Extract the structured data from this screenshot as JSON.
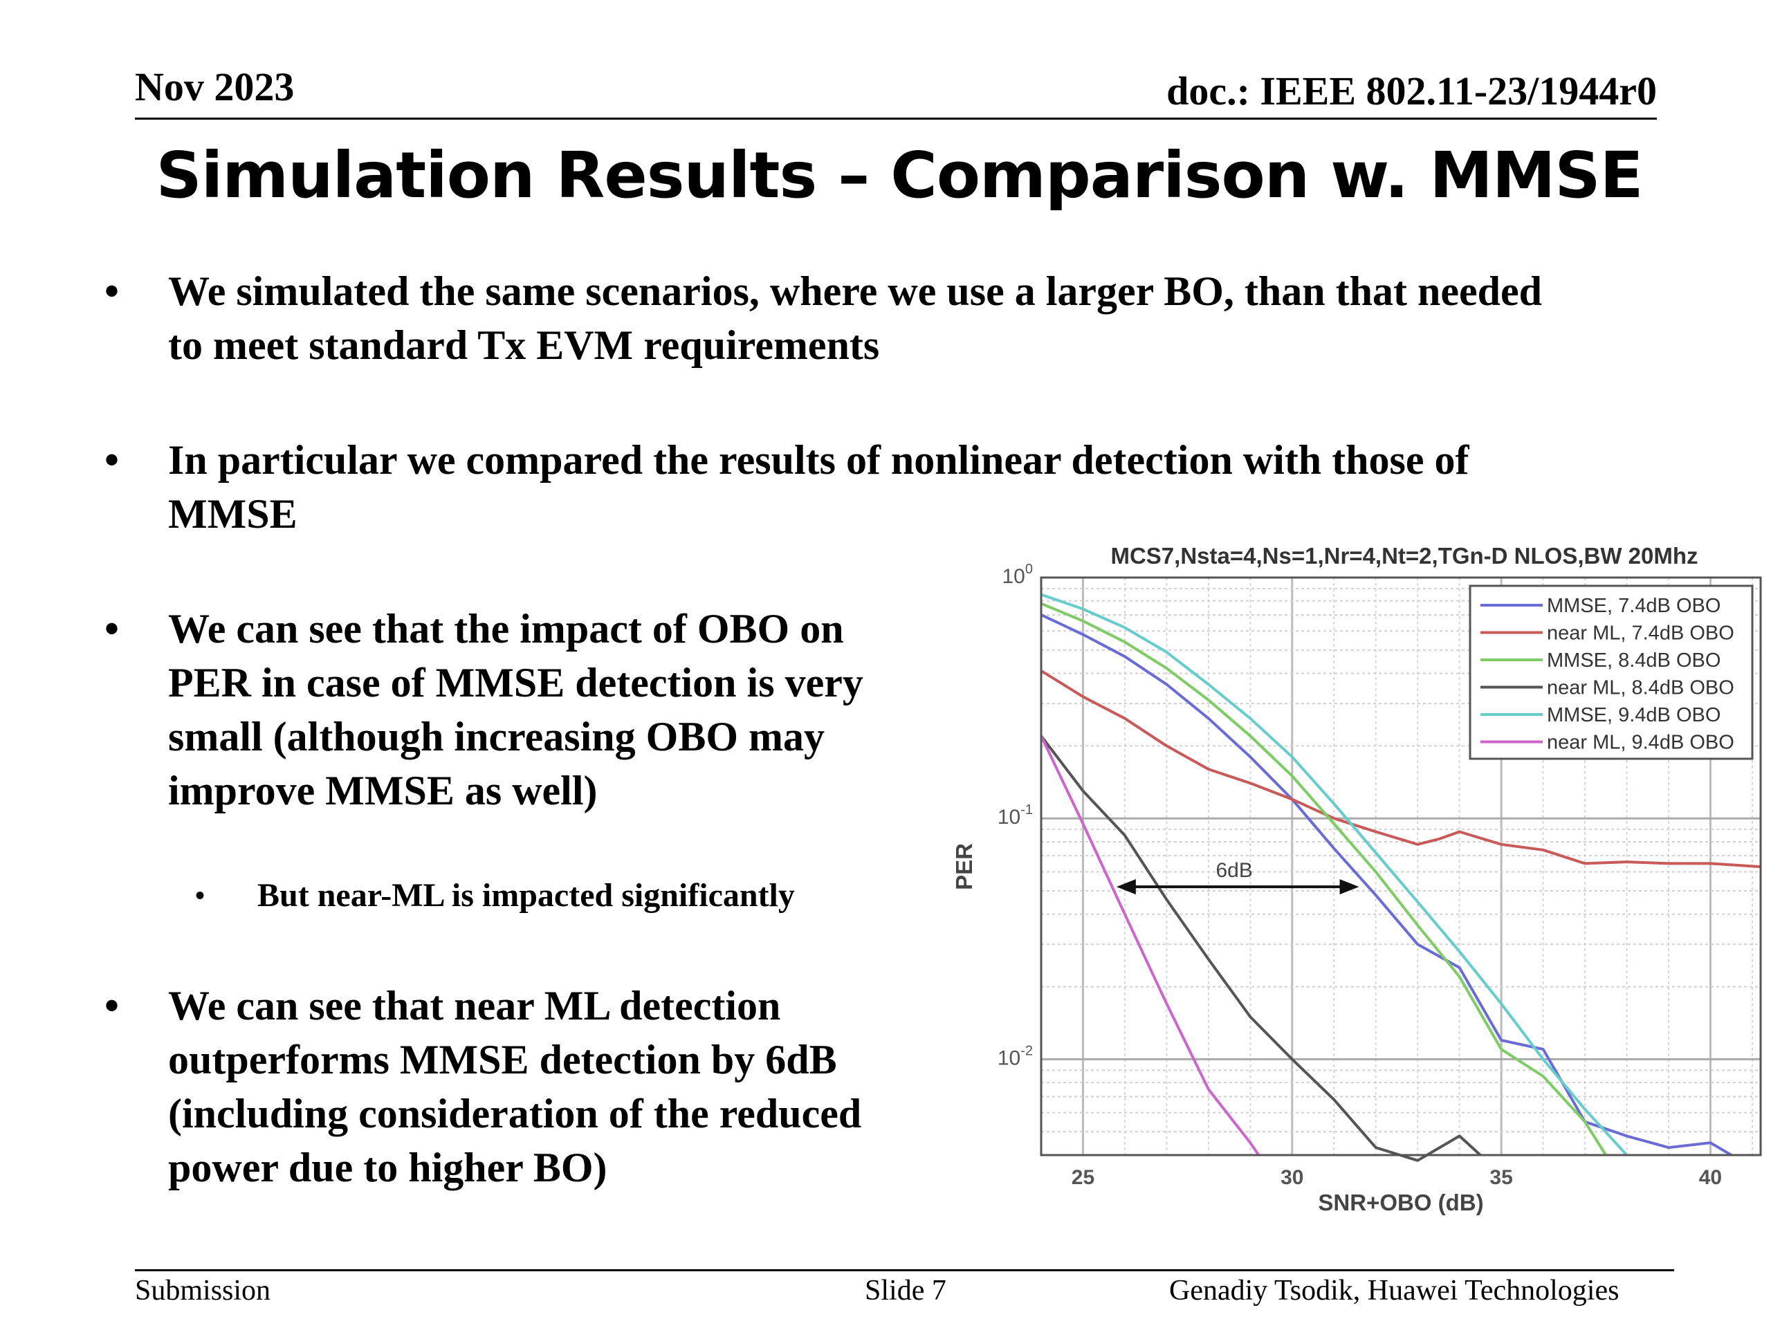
{
  "header": {
    "date": "Nov 2023",
    "doc": "doc.: IEEE 802.11-23/1944r0"
  },
  "title": "Simulation Results – Comparison w. MMSE",
  "bullets": [
    {
      "line1": "We simulated the same scenarios, where we use a larger BO, than that needed",
      "line2": "to meet standard Tx EVM requirements"
    },
    {
      "line1": "In particular we compared the results of nonlinear detection with those of",
      "line2": "MMSE"
    },
    {
      "line1": "We can see that the impact of OBO on",
      "line2": "PER in case of MMSE detection is very",
      "line3": "small (although increasing OBO may",
      "line4": "improve MMSE as well)"
    },
    {
      "line1": "We can see that near ML detection",
      "line2": "outperforms MMSE detection by 6dB",
      "line3": "(including consideration of the reduced",
      "line4": "power due to higher BO)"
    }
  ],
  "sub_bullet": "But near-ML is impacted significantly",
  "footer": {
    "left": "Submission",
    "center": "Slide 7",
    "right": "Genadiy Tsodik, Huawei Technologies"
  },
  "chart_data": {
    "type": "line",
    "title": "MCS7,Nsta=4,Ns=1,Nr=4,Nt=2,TGn-D NLOS,BW 20Mhz",
    "xlabel": "SNR+OBO (dB)",
    "ylabel": "PER",
    "xlim": [
      24,
      41.2
    ],
    "ylim": [
      0.004,
      1
    ],
    "yscale": "log",
    "grid": true,
    "legend_position": "top-right",
    "x_ticks": [
      "25",
      "30",
      "35",
      "40"
    ],
    "y_ticks": [
      {
        "base": "10",
        "exp": "0",
        "value": 1
      },
      {
        "base": "10",
        "exp": "-1",
        "value": 0.1
      },
      {
        "base": "10",
        "exp": "-2",
        "value": 0.01
      }
    ],
    "annotation": {
      "label": "6dB",
      "x_from": 25.8,
      "x_to": 31.6,
      "y": 0.052
    },
    "series": [
      {
        "name": "MMSE, 7.4dB OBO",
        "color": "#6b6bd6",
        "x": [
          24,
          25,
          26,
          27,
          28,
          29,
          30,
          31,
          32,
          33,
          34,
          35,
          36,
          37,
          38,
          39,
          40,
          40.5
        ],
        "y": [
          0.7,
          0.58,
          0.47,
          0.36,
          0.26,
          0.18,
          0.12,
          0.075,
          0.048,
          0.03,
          0.024,
          0.012,
          0.011,
          0.0055,
          0.0048,
          0.0043,
          0.0045,
          0.004
        ]
      },
      {
        "name": "near ML, 7.4dB OBO",
        "color": "#c85a5a",
        "x": [
          24,
          25,
          26,
          27,
          28,
          29,
          30,
          31,
          32,
          33,
          33.5,
          34,
          35,
          36,
          37,
          38,
          39,
          40,
          41.2
        ],
        "y": [
          0.41,
          0.32,
          0.26,
          0.2,
          0.16,
          0.14,
          0.12,
          0.1,
          0.088,
          0.078,
          0.082,
          0.088,
          0.078,
          0.074,
          0.065,
          0.066,
          0.065,
          0.065,
          0.063
        ]
      },
      {
        "name": "MMSE, 8.4dB OBO",
        "color": "#7fcc66",
        "x": [
          24,
          25,
          26,
          27,
          28,
          29,
          30,
          31,
          32,
          33,
          34,
          35,
          36,
          37,
          37.5
        ],
        "y": [
          0.78,
          0.66,
          0.54,
          0.42,
          0.31,
          0.22,
          0.15,
          0.095,
          0.06,
          0.036,
          0.022,
          0.011,
          0.0085,
          0.0055,
          0.004
        ]
      },
      {
        "name": "near ML, 8.4dB OBO",
        "color": "#555555",
        "x": [
          24,
          25,
          26,
          27,
          28,
          29,
          30,
          31,
          32,
          33,
          34,
          34.5
        ],
        "y": [
          0.22,
          0.13,
          0.085,
          0.046,
          0.026,
          0.015,
          0.01,
          0.0068,
          0.0043,
          0.0038,
          0.0048,
          0.004
        ]
      },
      {
        "name": "MMSE, 9.4dB OBO",
        "color": "#66cccc",
        "x": [
          24,
          25,
          26,
          27,
          28,
          29,
          30,
          31,
          32,
          33,
          34,
          35,
          36,
          37,
          38
        ],
        "y": [
          0.85,
          0.74,
          0.62,
          0.49,
          0.36,
          0.26,
          0.18,
          0.115,
          0.072,
          0.045,
          0.028,
          0.017,
          0.01,
          0.0062,
          0.004
        ]
      },
      {
        "name": "near ML, 9.4dB OBO",
        "color": "#cc66cc",
        "x": [
          24,
          25,
          26,
          27,
          28,
          29,
          29.2
        ],
        "y": [
          0.22,
          0.095,
          0.04,
          0.017,
          0.0075,
          0.0045,
          0.004
        ]
      }
    ]
  }
}
